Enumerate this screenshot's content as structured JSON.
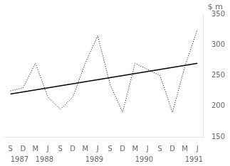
{
  "chart_data": {
    "type": "line",
    "ylabel": "$ m",
    "categories": [
      "S",
      "D",
      "M",
      "J",
      "S",
      "D",
      "M",
      "J",
      "S",
      "D",
      "M",
      "J",
      "S",
      "D",
      "M",
      "J"
    ],
    "series": [
      {
        "color": "#000000",
        "line_style": "dotted",
        "values": [
          225,
          230,
          270,
          215,
          195,
          215,
          270,
          315,
          235,
          190,
          270,
          260,
          250,
          190,
          265,
          325
        ]
      }
    ],
    "trend": {
      "start": 220,
      "end": 270,
      "color": "#000000",
      "line_style": "solid"
    },
    "annotations": [
      {
        "text": "1987",
        "x": 0
      },
      {
        "text": "1988",
        "x": 2
      },
      {
        "text": "1989",
        "x": 6
      },
      {
        "text": "1990",
        "x": 10
      },
      {
        "text": "1991",
        "x": 14
      }
    ],
    "ylim": [
      150,
      350
    ],
    "yticks": [
      150,
      200,
      250,
      300,
      350
    ],
    "grid": false,
    "legend": false
  }
}
